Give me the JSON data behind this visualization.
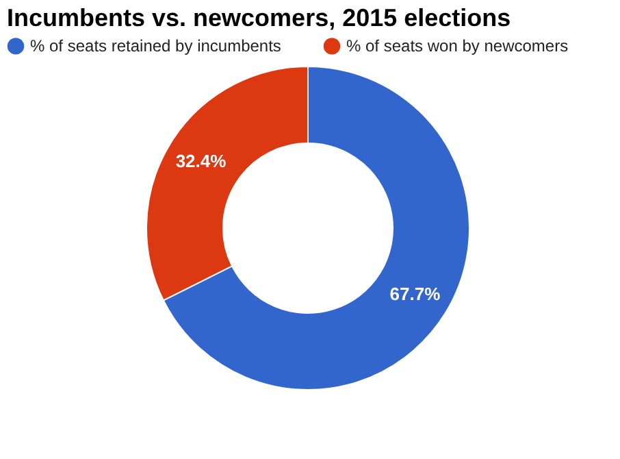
{
  "chart_data": {
    "type": "donut",
    "title": "Incumbents vs. newcomers, 2015 elections",
    "categories": [
      "% of seats retained by incumbents",
      "% of seats won by newcomers"
    ],
    "values": [
      67.7,
      32.4
    ],
    "colors": [
      "#3366cc",
      "#dc3912"
    ],
    "value_labels": [
      "67.7%",
      "32.4%"
    ],
    "legend": "top left"
  }
}
